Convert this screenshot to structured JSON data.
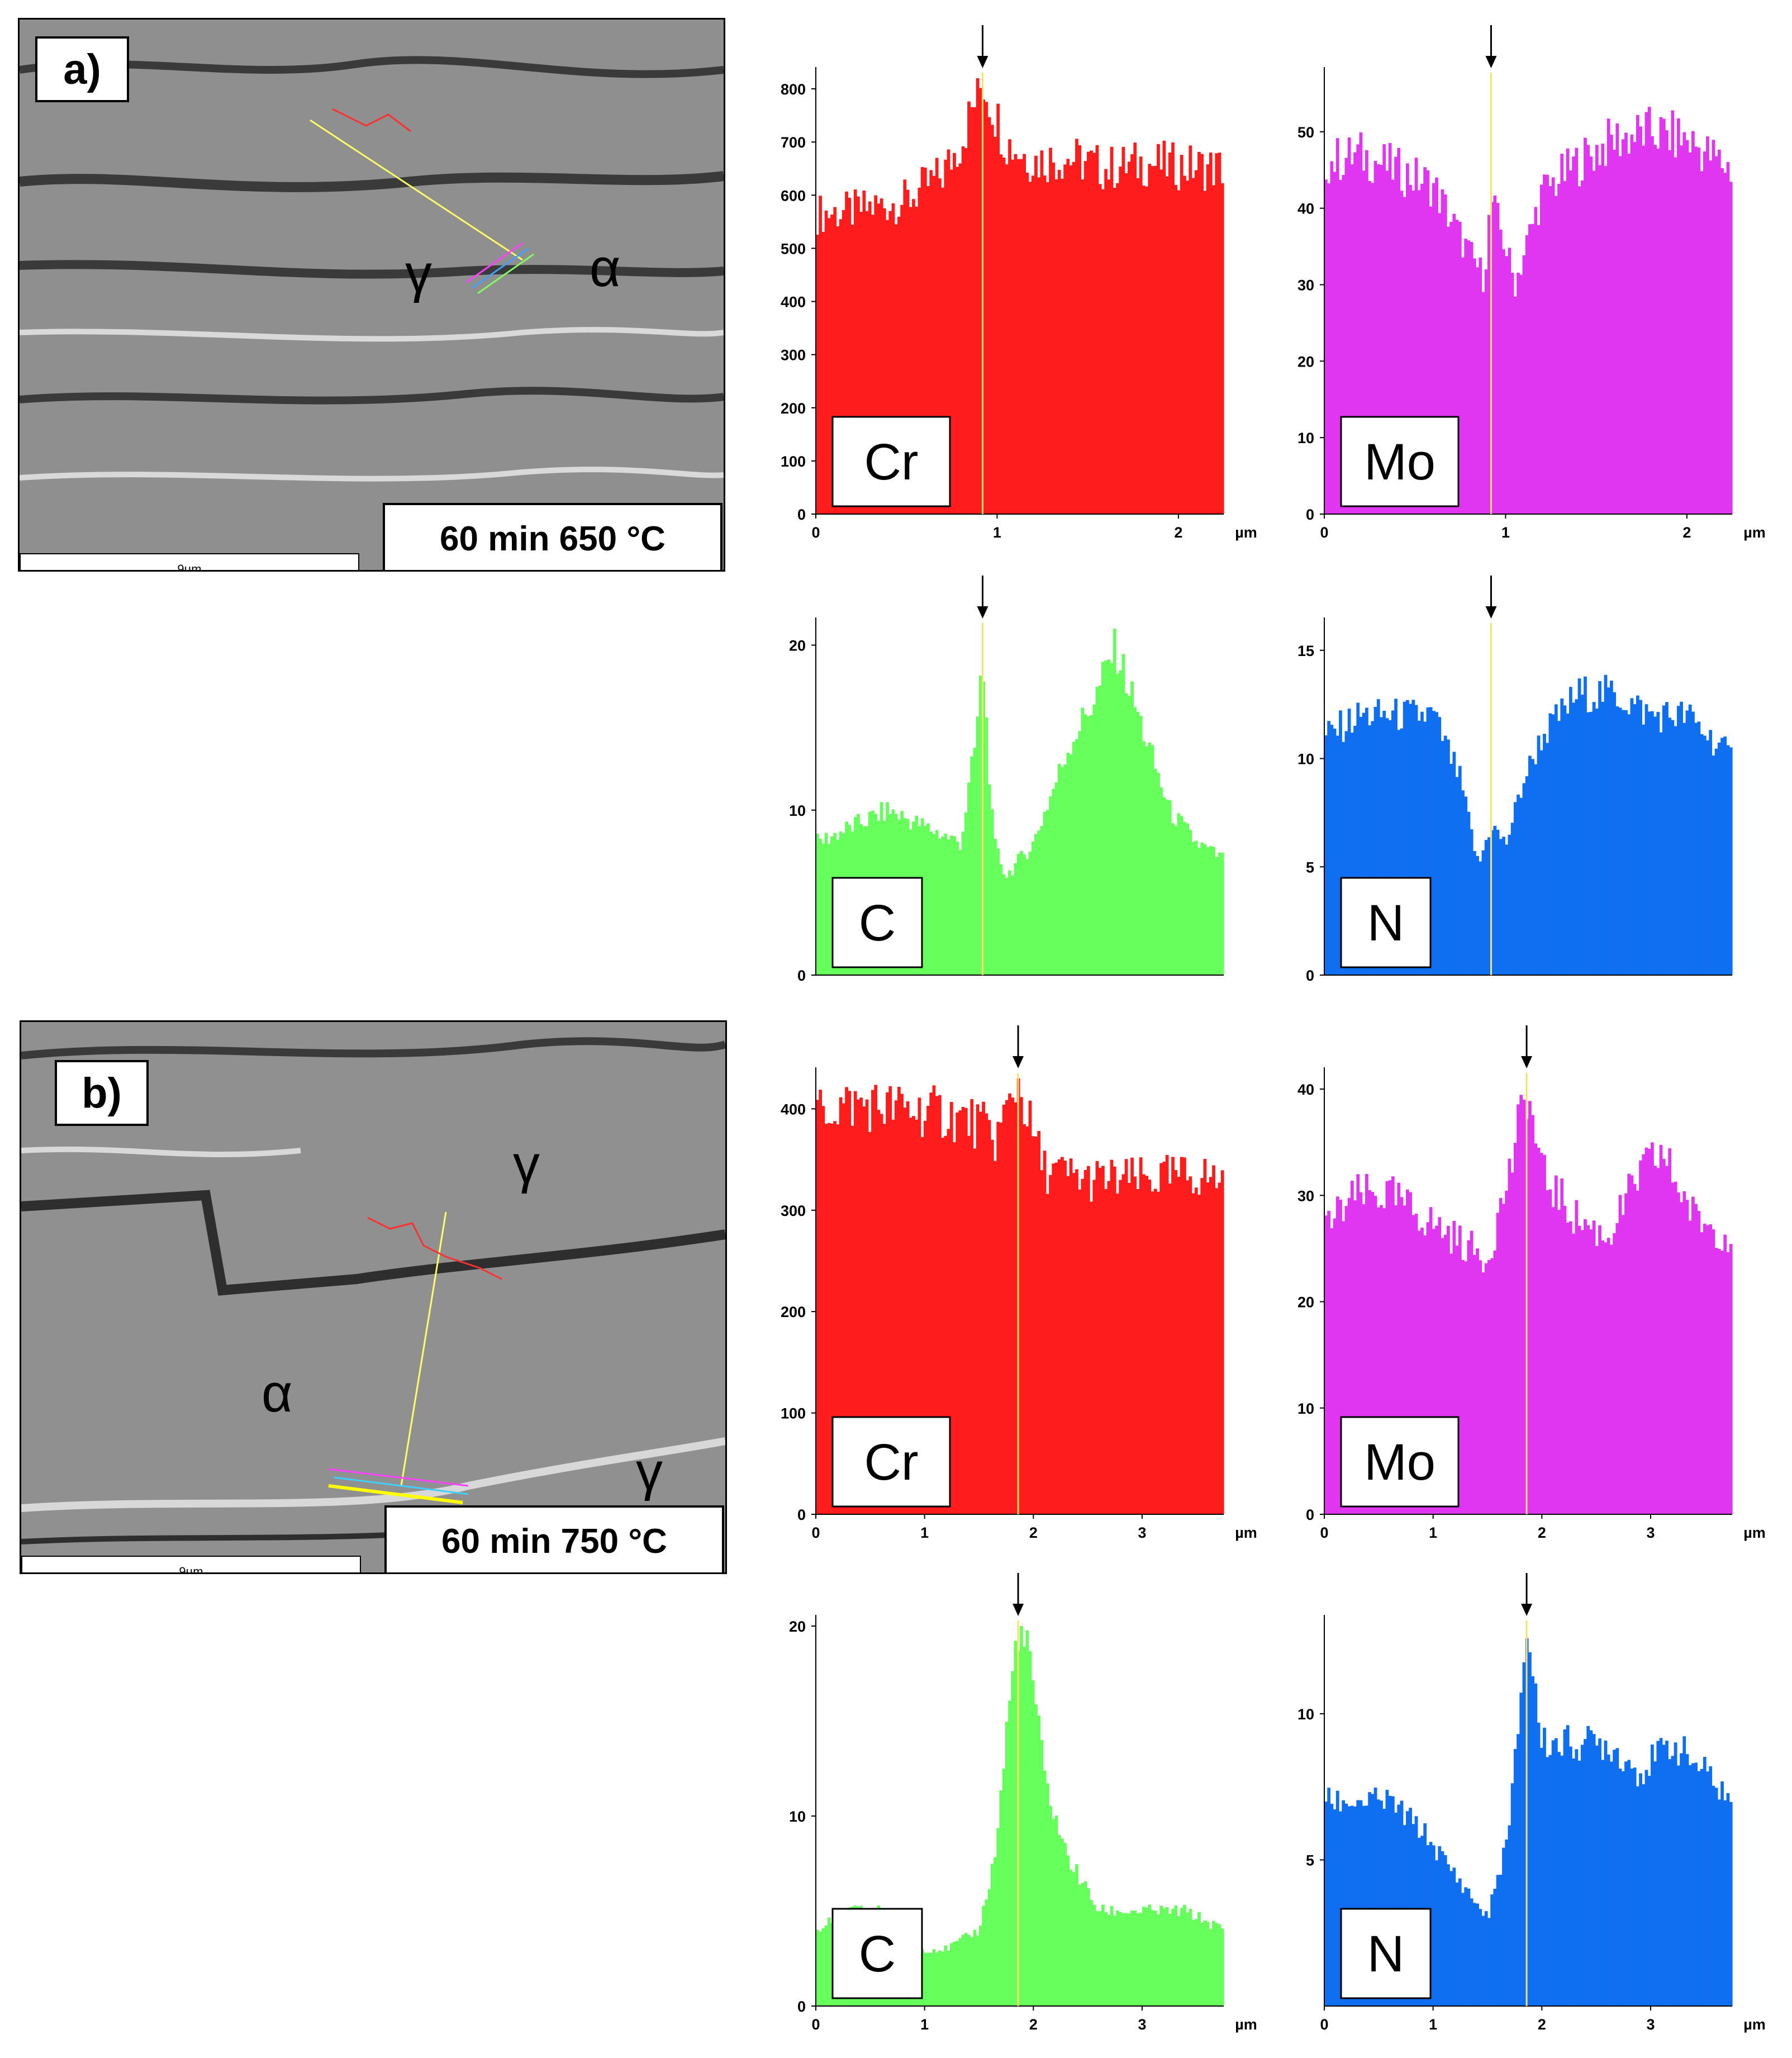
{
  "panels": [
    {
      "id": "a",
      "label": "a)",
      "caption": "60 min 650 °C",
      "scale": "9µm",
      "phases": [
        {
          "name": "gamma",
          "text": "γ"
        },
        {
          "name": "alpha",
          "text": "α"
        }
      ]
    },
    {
      "id": "b",
      "label": "b)",
      "caption": "60 min 750 °C",
      "scale": "9µm",
      "phases": [
        {
          "name": "gamma-top",
          "text": "γ"
        },
        {
          "name": "alpha",
          "text": "α"
        },
        {
          "name": "gamma-bottom",
          "text": "γ"
        }
      ]
    }
  ],
  "chart_data": [
    {
      "type": "area",
      "panel": "a",
      "element": "Cr",
      "color": "#ff1c1c",
      "xunit": "µm",
      "xlim": [
        0,
        2.25
      ],
      "ylim": [
        0,
        820
      ],
      "xticks": [
        0,
        1,
        2
      ],
      "yticks": [
        0,
        100,
        200,
        300,
        400,
        500,
        600,
        700,
        800
      ],
      "marker_x": 0.92,
      "profile": [
        [
          0,
          565
        ],
        [
          0.2,
          570
        ],
        [
          0.5,
          590
        ],
        [
          0.7,
          640
        ],
        [
          0.8,
          700
        ],
        [
          0.88,
          780
        ],
        [
          0.92,
          815
        ],
        [
          0.97,
          770
        ],
        [
          1.05,
          700
        ],
        [
          1.2,
          665
        ],
        [
          1.4,
          670
        ],
        [
          1.6,
          650
        ],
        [
          1.8,
          660
        ],
        [
          2.0,
          655
        ],
        [
          2.25,
          650
        ]
      ]
    },
    {
      "type": "area",
      "panel": "a",
      "element": "Mo",
      "color": "#e036f2",
      "xunit": "µm",
      "xlim": [
        0,
        2.25
      ],
      "ylim": [
        0,
        57
      ],
      "xticks": [
        0,
        1,
        2
      ],
      "yticks": [
        0,
        10,
        20,
        30,
        40,
        50
      ],
      "marker_x": 0.92,
      "profile": [
        [
          0,
          46
        ],
        [
          0.2,
          47
        ],
        [
          0.4,
          45
        ],
        [
          0.6,
          43
        ],
        [
          0.8,
          34
        ],
        [
          0.88,
          31
        ],
        [
          0.92,
          41
        ],
        [
          1.0,
          35
        ],
        [
          1.05,
          30
        ],
        [
          1.2,
          42
        ],
        [
          1.4,
          46
        ],
        [
          1.6,
          49
        ],
        [
          1.8,
          50
        ],
        [
          2.0,
          49
        ],
        [
          2.25,
          45
        ]
      ]
    },
    {
      "type": "area",
      "panel": "a",
      "element": "C",
      "color": "#66ff5c",
      "xunit": "µm",
      "xlim": [
        0,
        2.25
      ],
      "ylim": [
        0,
        21
      ],
      "xticks": [],
      "yticks": [
        0,
        10,
        20
      ],
      "marker_x": 0.92,
      "profile": [
        [
          0,
          8
        ],
        [
          0.2,
          9
        ],
        [
          0.4,
          10
        ],
        [
          0.6,
          9
        ],
        [
          0.8,
          8
        ],
        [
          0.88,
          14
        ],
        [
          0.92,
          19
        ],
        [
          0.98,
          8
        ],
        [
          1.05,
          6
        ],
        [
          1.2,
          8
        ],
        [
          1.4,
          14
        ],
        [
          1.55,
          17
        ],
        [
          1.65,
          20
        ],
        [
          1.8,
          15
        ],
        [
          1.95,
          10
        ],
        [
          2.1,
          8
        ],
        [
          2.25,
          7
        ]
      ]
    },
    {
      "type": "area",
      "panel": "a",
      "element": "N",
      "color": "#0f6ff0",
      "xunit": "µm",
      "xlim": [
        0,
        2.25
      ],
      "ylim": [
        0,
        16
      ],
      "xticks": [],
      "yticks": [
        0,
        5,
        10,
        15
      ],
      "marker_x": 0.92,
      "profile": [
        [
          0,
          11
        ],
        [
          0.2,
          12
        ],
        [
          0.4,
          12
        ],
        [
          0.6,
          12
        ],
        [
          0.75,
          9
        ],
        [
          0.85,
          5
        ],
        [
          0.92,
          7
        ],
        [
          1.0,
          6
        ],
        [
          1.1,
          9
        ],
        [
          1.2,
          11
        ],
        [
          1.4,
          13
        ],
        [
          1.6,
          13
        ],
        [
          1.8,
          12
        ],
        [
          2.0,
          12
        ],
        [
          2.25,
          10
        ]
      ]
    },
    {
      "type": "area",
      "panel": "b",
      "element": "Cr",
      "color": "#ff1c1c",
      "xunit": "µm",
      "xlim": [
        0,
        3.75
      ],
      "ylim": [
        0,
        430
      ],
      "xticks": [
        0,
        1,
        2,
        3
      ],
      "yticks": [
        0,
        100,
        200,
        300,
        400
      ],
      "marker_x": 1.86,
      "profile": [
        [
          0,
          400
        ],
        [
          0.4,
          405
        ],
        [
          0.8,
          400
        ],
        [
          1.2,
          395
        ],
        [
          1.5,
          385
        ],
        [
          1.65,
          370
        ],
        [
          1.8,
          410
        ],
        [
          1.86,
          430
        ],
        [
          1.95,
          390
        ],
        [
          2.1,
          340
        ],
        [
          2.5,
          330
        ],
        [
          3.0,
          330
        ],
        [
          3.5,
          335
        ],
        [
          3.75,
          330
        ]
      ]
    },
    {
      "type": "area",
      "panel": "b",
      "element": "Mo",
      "color": "#e036f2",
      "xunit": "µm",
      "xlim": [
        0,
        3.75
      ],
      "ylim": [
        0,
        41
      ],
      "xticks": [
        0,
        1,
        2,
        3
      ],
      "yticks": [
        0,
        10,
        20,
        30,
        40
      ],
      "marker_x": 1.86,
      "profile": [
        [
          0,
          27
        ],
        [
          0.3,
          30
        ],
        [
          0.6,
          30
        ],
        [
          0.9,
          28
        ],
        [
          1.2,
          26
        ],
        [
          1.5,
          24
        ],
        [
          1.7,
          32
        ],
        [
          1.86,
          40
        ],
        [
          2.0,
          32
        ],
        [
          2.3,
          28
        ],
        [
          2.6,
          26
        ],
        [
          2.9,
          32
        ],
        [
          3.1,
          34
        ],
        [
          3.4,
          28
        ],
        [
          3.75,
          26
        ]
      ]
    },
    {
      "type": "area",
      "panel": "b",
      "element": "C",
      "color": "#66ff5c",
      "xunit": "µm",
      "xlim": [
        0,
        3.75
      ],
      "ylim": [
        0,
        20
      ],
      "xticks": [
        0,
        1,
        2,
        3
      ],
      "yticks": [
        0,
        10,
        20
      ],
      "marker_x": 1.86,
      "profile": [
        [
          0,
          4
        ],
        [
          0.3,
          5
        ],
        [
          0.6,
          5
        ],
        [
          0.9,
          3
        ],
        [
          1.2,
          3
        ],
        [
          1.5,
          4
        ],
        [
          1.65,
          8
        ],
        [
          1.78,
          16
        ],
        [
          1.86,
          20
        ],
        [
          1.98,
          18
        ],
        [
          2.1,
          12
        ],
        [
          2.3,
          8
        ],
        [
          2.6,
          5
        ],
        [
          3.0,
          5
        ],
        [
          3.4,
          5
        ],
        [
          3.75,
          4
        ]
      ]
    },
    {
      "type": "area",
      "panel": "b",
      "element": "N",
      "color": "#0f6ff0",
      "xunit": "µm",
      "xlim": [
        0,
        3.75
      ],
      "ylim": [
        0,
        13
      ],
      "xticks": [
        0,
        1,
        2,
        3
      ],
      "yticks": [
        5,
        10
      ],
      "marker_x": 1.86,
      "profile": [
        [
          0,
          7
        ],
        [
          0.3,
          7
        ],
        [
          0.6,
          7
        ],
        [
          0.9,
          6
        ],
        [
          1.1,
          5
        ],
        [
          1.3,
          4
        ],
        [
          1.5,
          3
        ],
        [
          1.7,
          6
        ],
        [
          1.86,
          13
        ],
        [
          2.0,
          9
        ],
        [
          2.3,
          9
        ],
        [
          2.6,
          9
        ],
        [
          2.9,
          8
        ],
        [
          3.2,
          9
        ],
        [
          3.5,
          8
        ],
        [
          3.75,
          7
        ]
      ]
    }
  ]
}
